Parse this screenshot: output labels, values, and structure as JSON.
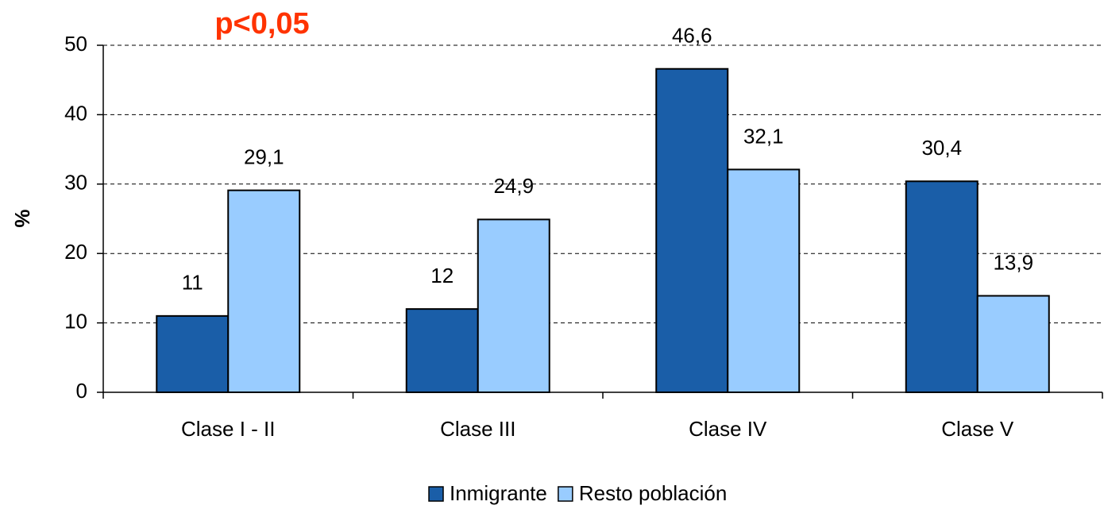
{
  "chart_data": {
    "type": "bar",
    "annotation": "p<0,05",
    "y_label": "%",
    "categories": [
      "Clase I - II",
      "Clase III",
      "Clase IV",
      "Clase V"
    ],
    "series": [
      {
        "name": "Inmigrante",
        "color": "#1a5ea8",
        "values": [
          11,
          12,
          46.6,
          30.4
        ],
        "value_labels": [
          "11",
          "12",
          "46,6",
          "30,4"
        ]
      },
      {
        "name": "Resto población",
        "color": "#99ccff",
        "values": [
          29.1,
          24.9,
          32.1,
          13.9
        ],
        "value_labels": [
          "29,1",
          "24,9",
          "32,1",
          "13,9"
        ]
      }
    ],
    "ylim": [
      0,
      50
    ],
    "yticks": [
      0,
      10,
      20,
      30,
      40,
      50
    ],
    "grid": true,
    "legend": "bottom"
  }
}
